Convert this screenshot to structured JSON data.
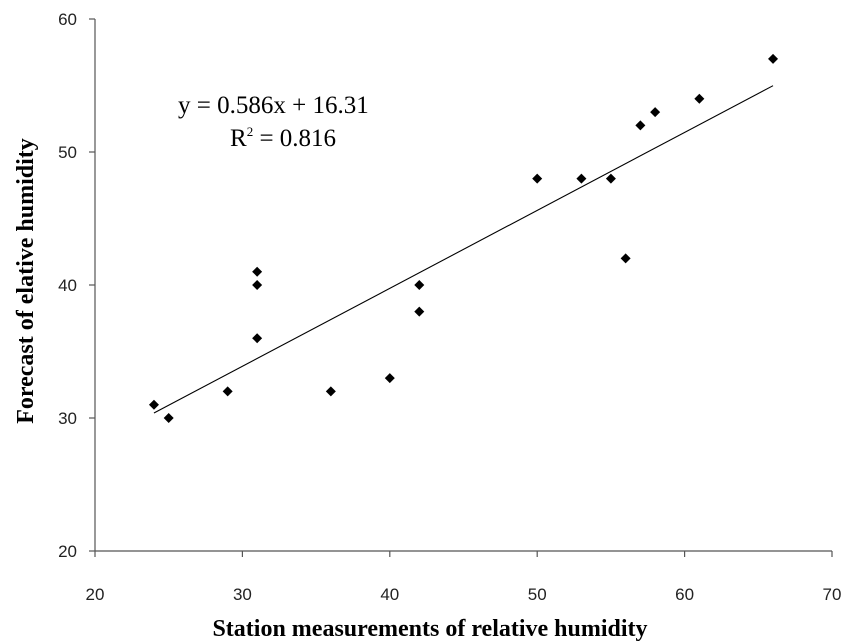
{
  "chart_data": {
    "type": "scatter",
    "title": "",
    "xlabel": "Station measurements of relative humidity",
    "ylabel": "Forecast of elative humidity",
    "xlim": [
      20,
      70
    ],
    "ylim": [
      20,
      60
    ],
    "xticks": [
      "20",
      "30",
      "40",
      "50",
      "60",
      "70"
    ],
    "yticks": [
      "20",
      "30",
      "40",
      "50",
      "60"
    ],
    "grid": false,
    "points": [
      {
        "x": 24,
        "y": 31
      },
      {
        "x": 25,
        "y": 30
      },
      {
        "x": 29,
        "y": 32
      },
      {
        "x": 31,
        "y": 41
      },
      {
        "x": 31,
        "y": 40
      },
      {
        "x": 31,
        "y": 36
      },
      {
        "x": 36,
        "y": 32
      },
      {
        "x": 40,
        "y": 33
      },
      {
        "x": 42,
        "y": 40
      },
      {
        "x": 42,
        "y": 38
      },
      {
        "x": 50,
        "y": 48
      },
      {
        "x": 53,
        "y": 48
      },
      {
        "x": 55,
        "y": 48
      },
      {
        "x": 56,
        "y": 42
      },
      {
        "x": 57,
        "y": 52
      },
      {
        "x": 58,
        "y": 53
      },
      {
        "x": 61,
        "y": 54
      },
      {
        "x": 66,
        "y": 57
      }
    ],
    "trendline": {
      "slope": 0.586,
      "intercept": 16.31,
      "x_range": [
        24,
        66
      ]
    },
    "annotations": {
      "equation": "y = 0.586x + 16.31",
      "r_squared_label": "R",
      "r_squared_sup": "2",
      "r_squared_value": " = 0.816"
    },
    "colors": {
      "marker": "#000000",
      "line": "#000000",
      "axis": "#555555"
    }
  }
}
